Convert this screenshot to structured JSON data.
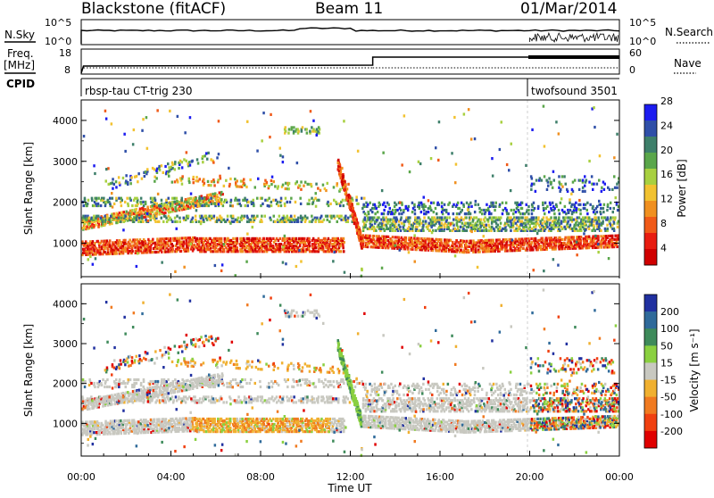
{
  "header": {
    "station": "Blackstone (fitACF)",
    "beam": "Beam 11",
    "date": "01/Mar/2014"
  },
  "panels": {
    "nsky_label": "N.Sky",
    "nsky_ticks": [
      "10^5",
      "10^0"
    ],
    "nsearch_label": "N.Search",
    "nsearch_ticks": [
      "10^5",
      "10^0"
    ],
    "freq_label": "Freq.",
    "freq_unit": "[MHz]",
    "freq_ticks": [
      "18",
      "8"
    ],
    "nave_label": "Nave",
    "nave_ticks": [
      "60",
      "0"
    ],
    "cpid_label": "CPID",
    "modes": [
      "rbsp-tau CT-trig 230",
      "twofsound 3501"
    ]
  },
  "chart_data": [
    {
      "type": "heatmap",
      "title": "",
      "ylabel": "Slant Range [km]",
      "xlabel": "",
      "x_hours": [
        0,
        24
      ],
      "ylim": [
        180,
        4500
      ],
      "yticks": [
        "1000",
        "2000",
        "3000",
        "4000"
      ],
      "colorbar": {
        "label": "Power [dB]",
        "ticks": [
          "4",
          "8",
          "12",
          "16",
          "20",
          "24",
          "28"
        ],
        "colors": [
          "#1c1cf0",
          "#2f4fa8",
          "#3e7f6a",
          "#5aa64a",
          "#a8d040",
          "#f2c230",
          "#f09020",
          "#f05a18",
          "#e81c10",
          "#d00000"
        ]
      }
    },
    {
      "type": "heatmap",
      "title": "",
      "ylabel": "Slant Range [km]",
      "xlabel": "Time UT",
      "x_hours": [
        0,
        24
      ],
      "ylim": [
        180,
        4500
      ],
      "yticks": [
        "1000",
        "2000",
        "3000",
        "4000"
      ],
      "xticks": [
        "00:00",
        "04:00",
        "08:00",
        "12:00",
        "16:00",
        "20:00",
        "00:00"
      ],
      "colorbar": {
        "label": "Velocity [m s⁻¹]",
        "ticks": [
          "200",
          "100",
          "50",
          "15",
          "-15",
          "-50",
          "-100",
          "-200"
        ],
        "colors": [
          "#2030a0",
          "#2f6a9a",
          "#3e8a5a",
          "#8ad040",
          "#c8c8c0",
          "#f0b030",
          "#f07a20",
          "#f04010",
          "#e00000"
        ]
      }
    }
  ]
}
